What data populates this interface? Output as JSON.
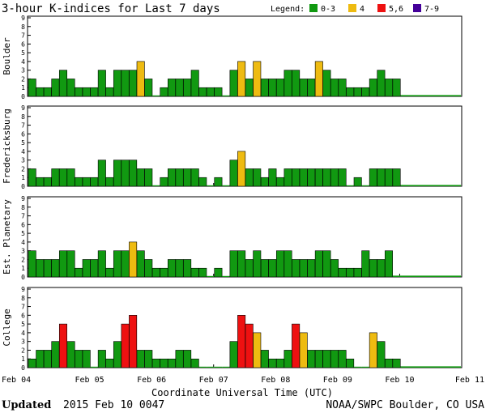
{
  "title": "3-hour K-indices for Last 7 days",
  "legend": {
    "label": "Legend:",
    "items": [
      {
        "label": "0-3",
        "color": "#119911"
      },
      {
        "label": "4",
        "color": "#EEBB11"
      },
      {
        "label": "5,6",
        "color": "#EE1111"
      },
      {
        "label": "7-9",
        "color": "#440099"
      }
    ]
  },
  "xlabel": "Coordinate Universal Time (UTC)",
  "footer": {
    "updated_label": "Updated",
    "updated_value": "2015 Feb 10 0047",
    "source": "NOAA/SWPC Boulder, CO USA"
  },
  "chart_data": [
    {
      "type": "bar",
      "station": "Boulder",
      "ylabel": "Boulder",
      "ylim": [
        0,
        9
      ],
      "yticks": [
        "0",
        "1",
        "2",
        "3",
        "4",
        "5",
        "6",
        "7",
        "8",
        "9"
      ],
      "x_tick_labels": [
        "Feb 04",
        "Feb 05",
        "Feb 06",
        "Feb 07",
        "Feb 08",
        "Feb 09",
        "Feb 10",
        "Feb 11"
      ],
      "values": [
        2,
        1,
        1,
        2,
        3,
        2,
        1,
        1,
        1,
        3,
        1,
        3,
        3,
        3,
        4,
        2,
        0,
        1,
        2,
        2,
        2,
        3,
        1,
        1,
        1,
        0,
        3,
        4,
        2,
        4,
        2,
        2,
        2,
        3,
        3,
        2,
        2,
        4,
        3,
        2,
        2,
        1,
        1,
        1,
        2,
        3,
        2,
        2
      ]
    },
    {
      "type": "bar",
      "station": "Fredericksburg",
      "ylabel": "Fredericksburg",
      "ylim": [
        0,
        9
      ],
      "yticks": [
        "0",
        "1",
        "2",
        "3",
        "4",
        "5",
        "6",
        "7",
        "8",
        "9"
      ],
      "x_tick_labels": [
        "Feb 04",
        "Feb 05",
        "Feb 06",
        "Feb 07",
        "Feb 08",
        "Feb 09",
        "Feb 10",
        "Feb 11"
      ],
      "values": [
        2,
        1,
        1,
        2,
        2,
        2,
        1,
        1,
        1,
        3,
        1,
        3,
        3,
        3,
        2,
        2,
        0,
        1,
        2,
        2,
        2,
        2,
        1,
        0,
        1,
        0,
        3,
        4,
        2,
        2,
        1,
        2,
        1,
        2,
        2,
        2,
        2,
        2,
        2,
        2,
        2,
        0,
        1,
        0,
        2,
        2,
        2,
        2
      ]
    },
    {
      "type": "bar",
      "station": "Est. Planetary",
      "ylabel": "Est. Planetary",
      "ylim": [
        0,
        9
      ],
      "yticks": [
        "0",
        "1",
        "2",
        "3",
        "4",
        "5",
        "6",
        "7",
        "8",
        "9"
      ],
      "x_tick_labels": [
        "Feb 04",
        "Feb 05",
        "Feb 06",
        "Feb 07",
        "Feb 08",
        "Feb 09",
        "Feb 10",
        "Feb 11"
      ],
      "values": [
        3,
        2,
        2,
        2,
        3,
        3,
        1,
        2,
        2,
        3,
        1,
        3,
        3,
        4,
        3,
        2,
        1,
        1,
        2,
        2,
        2,
        1,
        1,
        0,
        1,
        0,
        3,
        3,
        2,
        3,
        2,
        2,
        3,
        3,
        2,
        2,
        2,
        3,
        3,
        2,
        1,
        1,
        1,
        3,
        2,
        2,
        3
      ]
    },
    {
      "type": "bar",
      "station": "College",
      "ylabel": "College",
      "ylim": [
        0,
        9
      ],
      "yticks": [
        "0",
        "1",
        "2",
        "3",
        "4",
        "5",
        "6",
        "7",
        "8",
        "9"
      ],
      "x_tick_labels": [
        "Feb 04",
        "Feb 05",
        "Feb 06",
        "Feb 07",
        "Feb 08",
        "Feb 09",
        "Feb 10",
        "Feb 11"
      ],
      "values": [
        1,
        2,
        2,
        3,
        5,
        3,
        2,
        2,
        0,
        2,
        1,
        3,
        5,
        6,
        2,
        2,
        1,
        1,
        1,
        2,
        2,
        1,
        0,
        0,
        0,
        0,
        3,
        6,
        5,
        4,
        2,
        1,
        1,
        2,
        5,
        4,
        2,
        2,
        2,
        2,
        2,
        1,
        0,
        0,
        4,
        3,
        1,
        1
      ]
    }
  ]
}
